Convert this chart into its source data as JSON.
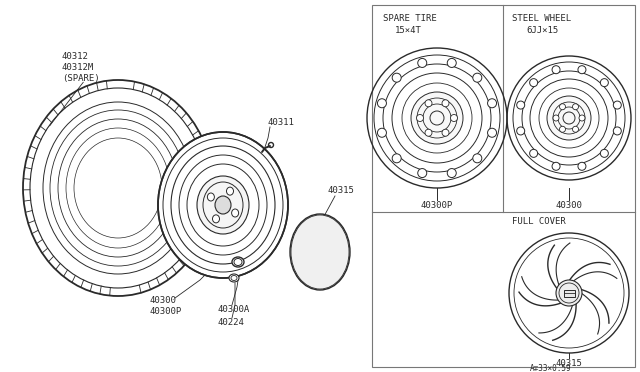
{
  "bg_color": "#ffffff",
  "line_color": "#2a2a2a",
  "labels": {
    "tire": "40312\n40312M\n(SPARE)",
    "valve": "40311",
    "wheel": "40300\n40300P",
    "nut": "40300A",
    "lug": "40224",
    "cover": "40315",
    "spare_tire_title": "SPARE TIRE",
    "spare_tire_size": "15×4T",
    "spare_tire_part": "40300P",
    "steel_wheel_title": "STEEL WHEEL",
    "steel_wheel_size": "6JJ×15",
    "steel_wheel_part": "40300",
    "full_cover_title": "FULL COVER",
    "full_cover_part": "40315",
    "footer": "A∓33×0.59"
  }
}
